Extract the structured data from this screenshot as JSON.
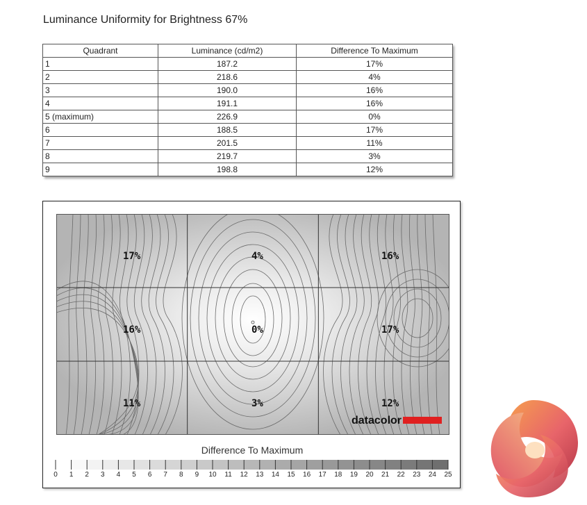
{
  "title": "Luminance Uniformity for Brightness 67%",
  "table": {
    "headers": [
      "Quadrant",
      "Luminance (cd/m2)",
      "Difference To Maximum"
    ],
    "rows": [
      [
        "1",
        "187.2",
        "17%"
      ],
      [
        "2",
        "218.6",
        "4%"
      ],
      [
        "3",
        "190.0",
        "16%"
      ],
      [
        "4",
        "191.1",
        "16%"
      ],
      [
        "5 (maximum)",
        "226.9",
        "0%"
      ],
      [
        "6",
        "188.5",
        "17%"
      ],
      [
        "7",
        "201.5",
        "11%"
      ],
      [
        "8",
        "219.7",
        "3%"
      ],
      [
        "9",
        "198.8",
        "12%"
      ]
    ]
  },
  "map": {
    "brand": "datacolor",
    "brand_accent": "#e02020",
    "labels": [
      "17%",
      "4%",
      "16%",
      "16%",
      "0%",
      "17%",
      "11%",
      "3%",
      "12%"
    ]
  },
  "scale": {
    "title": "Difference To Maximum",
    "ticks": [
      "0",
      "1",
      "2",
      "3",
      "4",
      "5",
      "6",
      "7",
      "8",
      "9",
      "10",
      "11",
      "12",
      "13",
      "14",
      "15",
      "16",
      "17",
      "18",
      "19",
      "20",
      "21",
      "22",
      "23",
      "24",
      "25"
    ]
  },
  "chart_data": {
    "type": "heatmap",
    "title": "Difference To Maximum",
    "grid": {
      "rows": 3,
      "cols": 3
    },
    "values": [
      [
        17,
        4,
        16
      ],
      [
        16,
        0,
        17
      ],
      [
        11,
        3,
        12
      ]
    ],
    "scale_range": [
      0,
      25
    ]
  }
}
